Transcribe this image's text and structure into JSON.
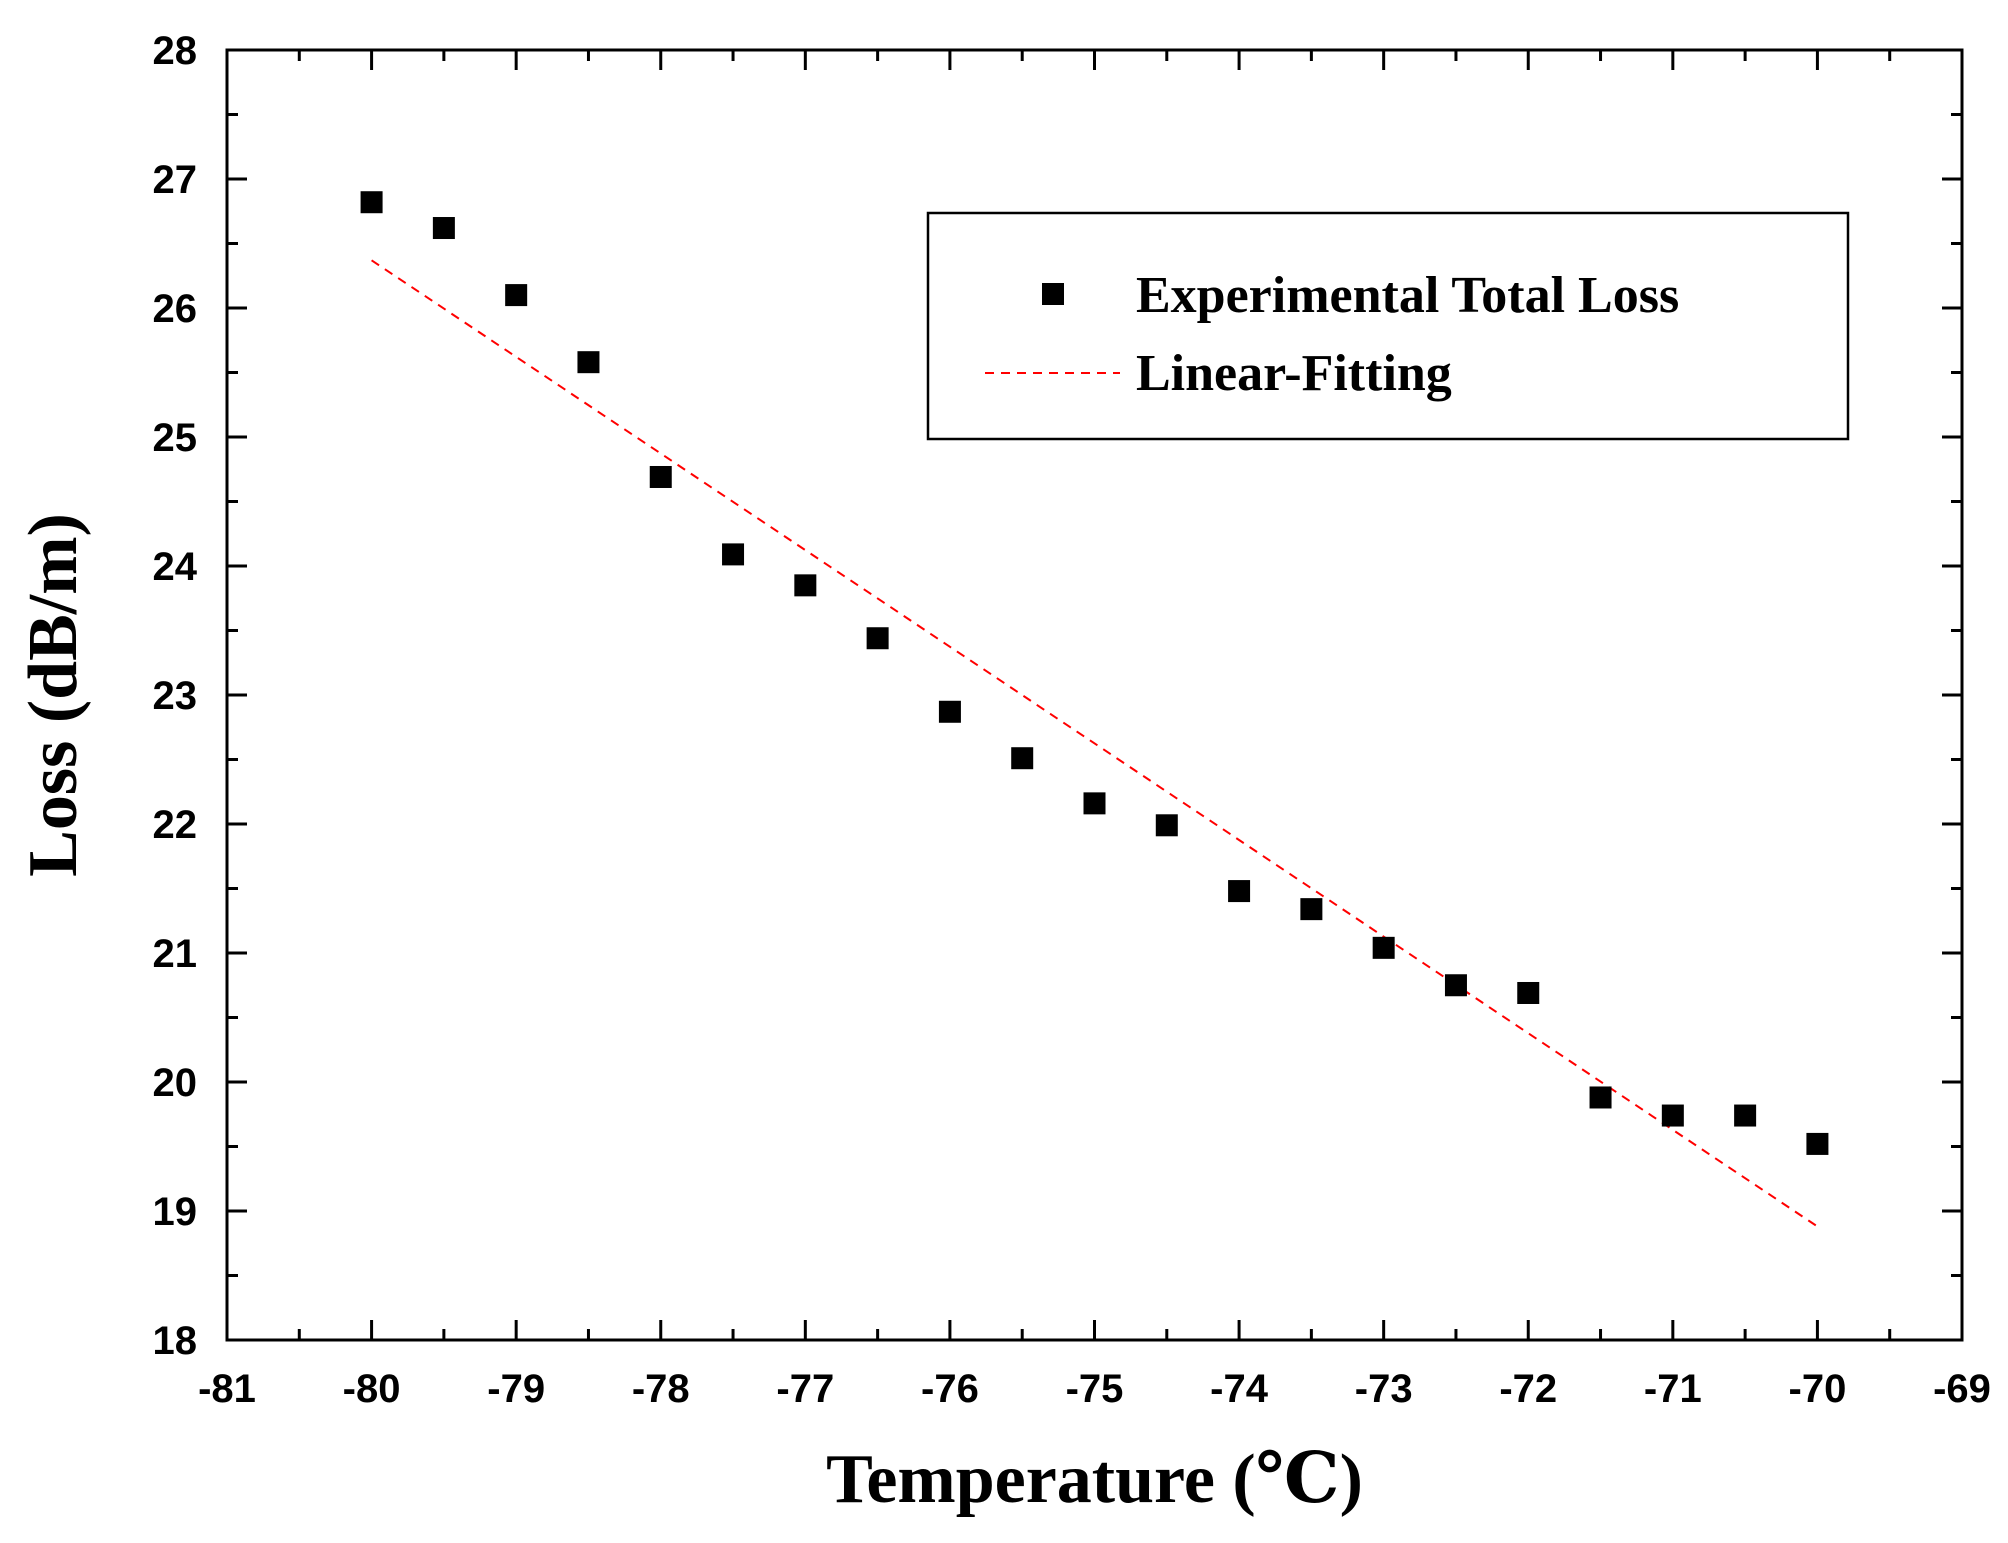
{
  "chart_data": {
    "type": "scatter",
    "title": "",
    "xlabel": "Temperature (℃)",
    "ylabel": "Loss (dB/m)",
    "xlim": [
      -81,
      -69
    ],
    "ylim": [
      18,
      28
    ],
    "x_ticks": [
      -81,
      -80,
      -79,
      -78,
      -77,
      -76,
      -75,
      -74,
      -73,
      -72,
      -71,
      -70,
      -69
    ],
    "y_ticks": [
      18,
      19,
      20,
      21,
      22,
      23,
      24,
      25,
      26,
      27,
      28
    ],
    "grid": false,
    "legend_position": "top-right",
    "series": [
      {
        "name": "Experimental Total Loss",
        "kind": "scatter",
        "marker": "square",
        "color": "#000000",
        "x": [
          -80,
          -79.5,
          -79,
          -78.5,
          -78,
          -77.5,
          -77,
          -76.5,
          -76,
          -75.5,
          -75,
          -74.5,
          -74,
          -73.5,
          -73,
          -72.5,
          -72,
          -71.5,
          -71,
          -70.5,
          -70
        ],
        "y": [
          26.82,
          26.62,
          26.1,
          25.58,
          24.69,
          24.09,
          23.85,
          23.44,
          22.87,
          22.51,
          22.16,
          21.99,
          21.48,
          21.34,
          21.04,
          20.75,
          20.69,
          19.88,
          19.74,
          19.74,
          19.52
        ]
      },
      {
        "name": "Linear-Fitting",
        "kind": "line",
        "style": "dashed",
        "color": "#ff0000",
        "x": [
          -80,
          -70
        ],
        "y": [
          26.37,
          18.88
        ]
      }
    ]
  }
}
